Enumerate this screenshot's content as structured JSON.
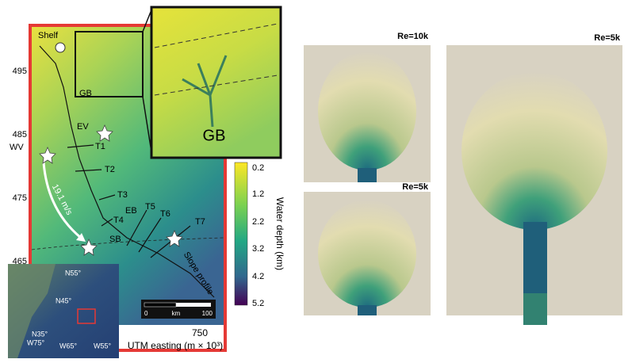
{
  "map": {
    "shelf_label": "Shelf",
    "northing_ticks": [
      "495",
      "485",
      "475",
      "465"
    ],
    "easting_tick": "750",
    "x_axis_label": "UTM easting (m × 10³)",
    "site_labels": {
      "gb_small": "GB",
      "ev": "EV",
      "wv": "WV",
      "eb": "EB",
      "sb": "SB"
    },
    "transects": [
      "T1",
      "T2",
      "T3",
      "T4",
      "T5",
      "T6",
      "T7"
    ],
    "speed_label": "19.1 m/s",
    "slope_label": "Slope profile",
    "zoom_label": "GB",
    "scale_bar": {
      "start": "0",
      "unit": "km",
      "end": "100"
    },
    "colorbar": {
      "ticks": [
        "0.2",
        "1.2",
        "2.2",
        "3.2",
        "4.2",
        "5.2"
      ],
      "label": "Water depth (km)"
    },
    "locator": {
      "latitudes": [
        "N55°",
        "N45°",
        "N35°"
      ],
      "longitudes": [
        "W75°",
        "W65°",
        "W55°"
      ]
    }
  },
  "simulations": [
    {
      "label": "Re=10k"
    },
    {
      "label": "Re=5k"
    },
    {
      "label": "Re=5k"
    }
  ]
}
